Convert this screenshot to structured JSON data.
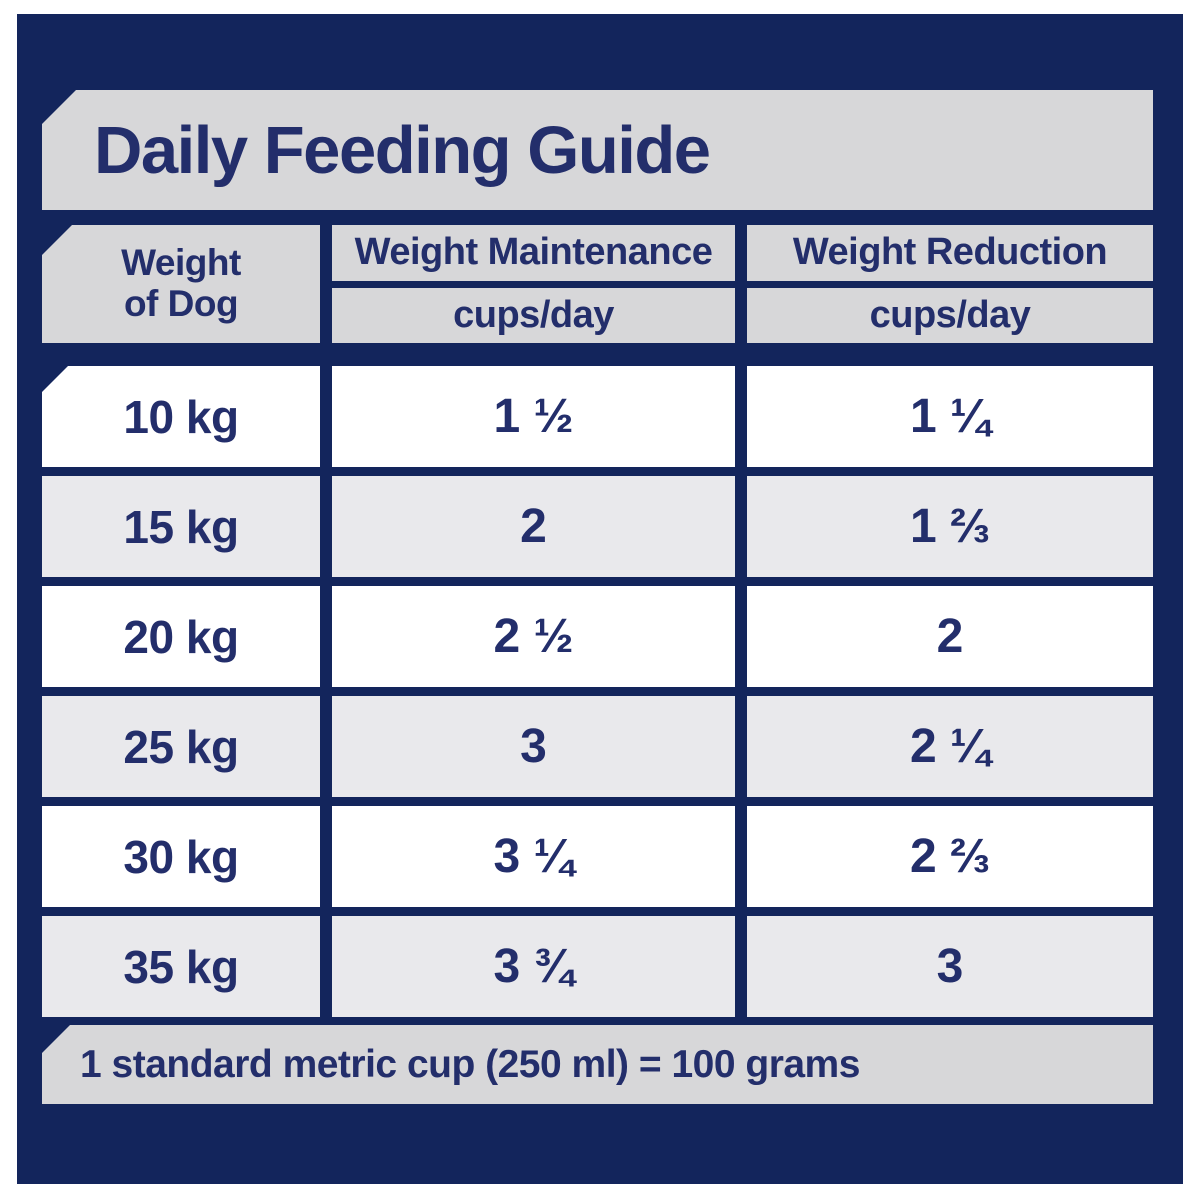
{
  "title": "Daily Feeding Guide",
  "table": {
    "weight_header": {
      "line1": "Weight",
      "line2": "of Dog"
    },
    "maintenance_header": "Weight Maintenance",
    "reduction_header": "Weight Reduction",
    "unit_label": "cups/day",
    "rows": [
      {
        "weight": "10 kg",
        "maintenance": "1 ½",
        "reduction": "1 ¼"
      },
      {
        "weight": "15 kg",
        "maintenance": "2",
        "reduction": "1 ⅔"
      },
      {
        "weight": "20 kg",
        "maintenance": "2 ½",
        "reduction": "2"
      },
      {
        "weight": "25 kg",
        "maintenance": "3",
        "reduction": "2 ¼"
      },
      {
        "weight": "30 kg",
        "maintenance": "3 ¼",
        "reduction": "2 ⅔"
      },
      {
        "weight": "35 kg",
        "maintenance": "3 ¾",
        "reduction": "3"
      }
    ]
  },
  "footnote": "1 standard metric cup (250 ml) = 100 grams",
  "colors": {
    "page_bg": "#ffffff",
    "panel_navy": "#13255c",
    "banner_gray": "#d7d7d9",
    "alt_row_gray": "#e9e9ec",
    "row_white": "#ffffff",
    "text_navy": "#232e6b"
  },
  "chart_data": {
    "type": "table",
    "title": "Daily Feeding Guide",
    "columns": [
      "Weight of Dog",
      "Weight Maintenance (cups/day)",
      "Weight Reduction (cups/day)"
    ],
    "rows": [
      [
        "10 kg",
        "1 1/2",
        "1 1/4"
      ],
      [
        "15 kg",
        "2",
        "1 2/3"
      ],
      [
        "20 kg",
        "2 1/2",
        "2"
      ],
      [
        "25 kg",
        "3",
        "2 1/4"
      ],
      [
        "30 kg",
        "3 1/4",
        "2 2/3"
      ],
      [
        "35 kg",
        "3 3/4",
        "3"
      ]
    ],
    "numeric": {
      "weights_kg": [
        10,
        15,
        20,
        25,
        30,
        35
      ],
      "maintenance_cups_per_day": [
        1.5,
        2,
        2.5,
        3,
        3.25,
        3.75
      ],
      "reduction_cups_per_day": [
        1.25,
        1.67,
        2,
        2.25,
        2.67,
        3
      ]
    },
    "footnote": "1 standard metric cup (250 ml) = 100 grams",
    "layout": {
      "header_position": "top",
      "alternating_rows": true
    }
  }
}
